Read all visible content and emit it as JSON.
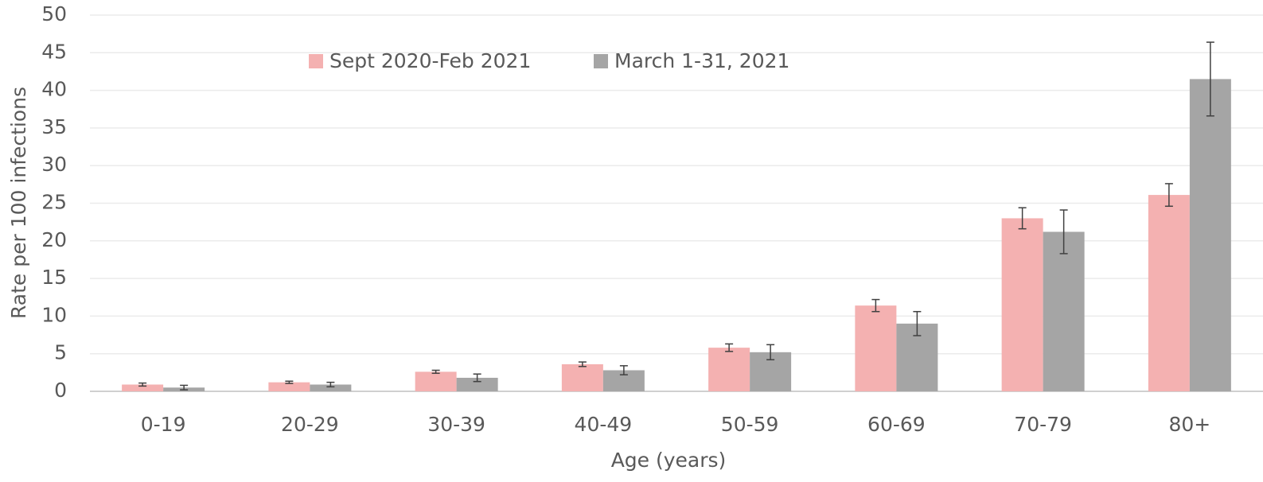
{
  "chart_data": {
    "type": "bar",
    "x_label": "Age (years)",
    "y_label": "Rate per 100 infections",
    "categories": [
      "0-19",
      "20-29",
      "30-39",
      "40-49",
      "50-59",
      "60-69",
      "70-79",
      "80+"
    ],
    "series": [
      {
        "name": "Sept 2020-Feb 2021",
        "color": "#f4b1b1",
        "values": [
          0.9,
          1.2,
          2.6,
          3.6,
          5.8,
          11.4,
          23.0,
          26.1
        ],
        "errors": [
          0.2,
          0.15,
          0.2,
          0.3,
          0.5,
          0.8,
          1.4,
          1.5
        ]
      },
      {
        "name": "March 1-31, 2021",
        "color": "#a5a5a5",
        "values": [
          0.5,
          0.9,
          1.8,
          2.8,
          5.2,
          9.0,
          21.2,
          41.5
        ],
        "errors": [
          0.3,
          0.3,
          0.5,
          0.6,
          1.0,
          1.6,
          2.9,
          4.9
        ]
      }
    ],
    "ylim": [
      0,
      50
    ],
    "yticks": [
      0,
      5,
      10,
      15,
      20,
      25,
      30,
      35,
      40,
      45,
      50
    ],
    "grid": true,
    "legend": "top"
  }
}
